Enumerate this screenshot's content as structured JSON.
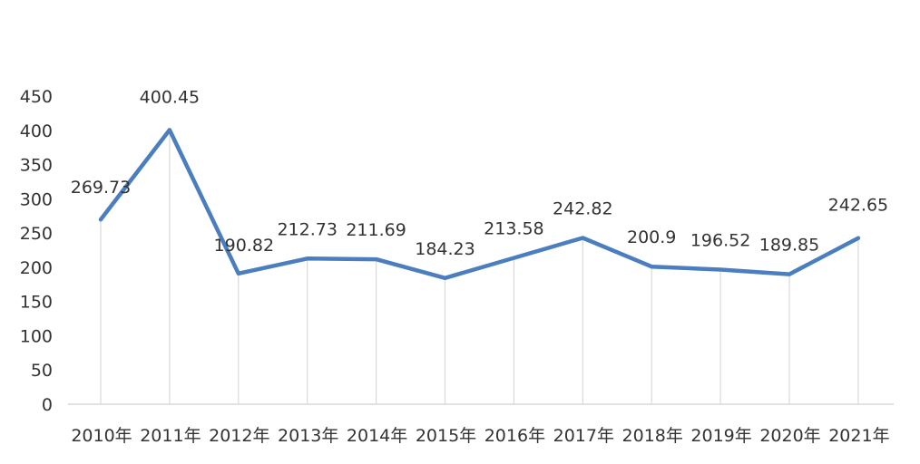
{
  "chart_data": {
    "type": "line",
    "categories": [
      "2010年",
      "2011年",
      "2012年",
      "2013年",
      "2014年",
      "2015年",
      "2016年",
      "2017年",
      "2018年",
      "2019年",
      "2020年",
      "2021年"
    ],
    "values": [
      269.73,
      400.45,
      190.82,
      212.73,
      211.69,
      184.23,
      213.58,
      242.82,
      200.9,
      196.52,
      189.85,
      242.65
    ],
    "data_labels": [
      "269.73",
      "400.45",
      "190.82",
      "212.73",
      "211.69",
      "184.23",
      "213.58",
      "242.82",
      "200.9",
      "196.52",
      "189.85",
      "242.65"
    ],
    "y_ticks": [
      "0",
      "50",
      "100",
      "150",
      "200",
      "250",
      "300",
      "350",
      "400",
      "450"
    ],
    "ylim": [
      0,
      450
    ],
    "line_color": "#4a7ebf",
    "drop_line_color": "#d9d9d9",
    "axis_color": "#d9d9d9",
    "grid": false,
    "legend": "none"
  }
}
